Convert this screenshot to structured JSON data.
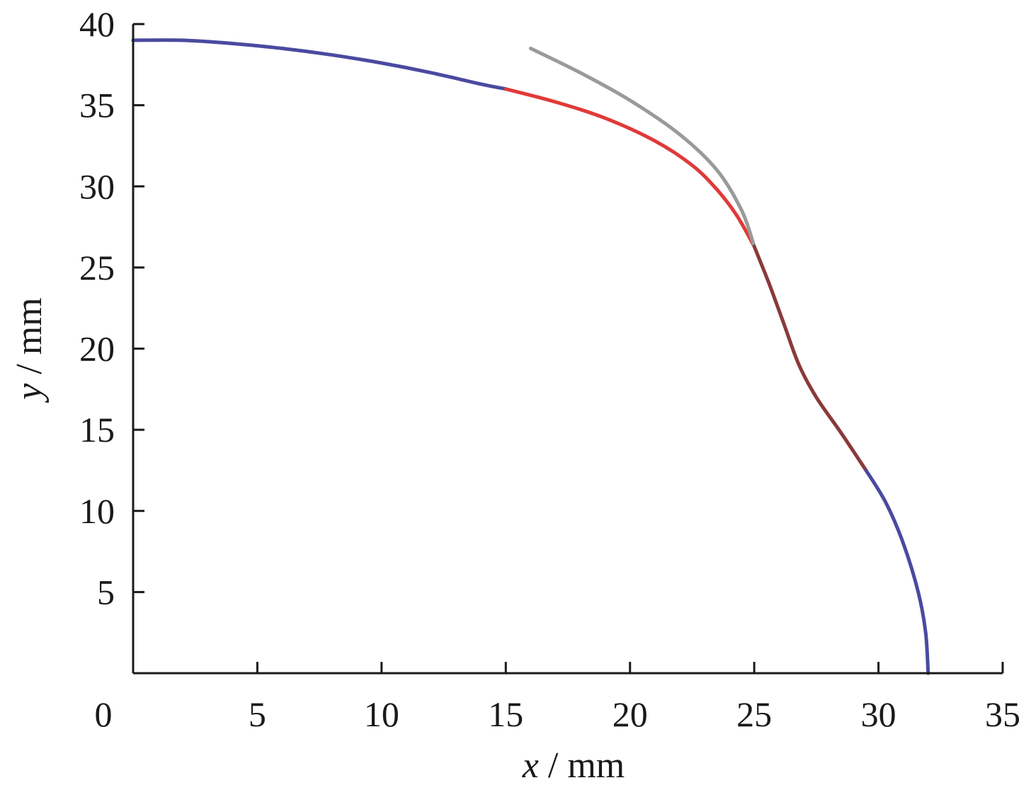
{
  "chart_data": {
    "type": "line",
    "title": "",
    "xlabel": {
      "var": "x",
      "unit": " / mm"
    },
    "ylabel": {
      "var": "y",
      "unit": " / mm"
    },
    "xlim": [
      0,
      35
    ],
    "ylim": [
      0,
      40
    ],
    "x_ticks": [
      0,
      5,
      10,
      15,
      20,
      25,
      30,
      35
    ],
    "y_ticks": [
      5,
      10,
      15,
      20,
      25,
      30,
      35,
      40
    ],
    "x_tick_labels": [
      "0",
      "5",
      "10",
      "15",
      "20",
      "25",
      "30",
      "35"
    ],
    "y_tick_labels": [
      "5",
      "10",
      "15",
      "20",
      "25",
      "30",
      "35",
      "40"
    ],
    "grid": false,
    "legend": "none",
    "series": [
      {
        "color": "#4a4aa0",
        "points": [
          [
            0,
            39
          ],
          [
            2,
            39
          ],
          [
            4,
            38.8
          ],
          [
            6,
            38.5
          ],
          [
            8,
            38.1
          ],
          [
            10,
            37.6
          ],
          [
            12,
            37
          ],
          [
            14,
            36.3
          ],
          [
            15,
            36
          ]
        ]
      },
      {
        "color": "#e03a3a",
        "points": [
          [
            15,
            36
          ],
          [
            17,
            35.2
          ],
          [
            19,
            34.2
          ],
          [
            21,
            32.8
          ],
          [
            22.5,
            31.3
          ],
          [
            23.5,
            29.8
          ],
          [
            24.3,
            28.2
          ],
          [
            25,
            26.3
          ]
        ]
      },
      {
        "color": "#9a9a9a",
        "points": [
          [
            16,
            38.5
          ],
          [
            18,
            37
          ],
          [
            20,
            35.3
          ],
          [
            22,
            33.2
          ],
          [
            23.5,
            31
          ],
          [
            24.5,
            28.5
          ],
          [
            25,
            26.3
          ]
        ]
      },
      {
        "color": "#8a3a3a",
        "points": [
          [
            25,
            26.3
          ],
          [
            25.6,
            24
          ],
          [
            26.2,
            21.5
          ],
          [
            26.8,
            19
          ],
          [
            27.5,
            17
          ],
          [
            28.5,
            14.8
          ],
          [
            29.5,
            12.5
          ]
        ]
      },
      {
        "color": "#4a4aa0",
        "points": [
          [
            29.5,
            12.5
          ],
          [
            30.3,
            10.5
          ],
          [
            31,
            8
          ],
          [
            31.6,
            5
          ],
          [
            31.9,
            2.5
          ],
          [
            32,
            0
          ]
        ]
      }
    ]
  }
}
